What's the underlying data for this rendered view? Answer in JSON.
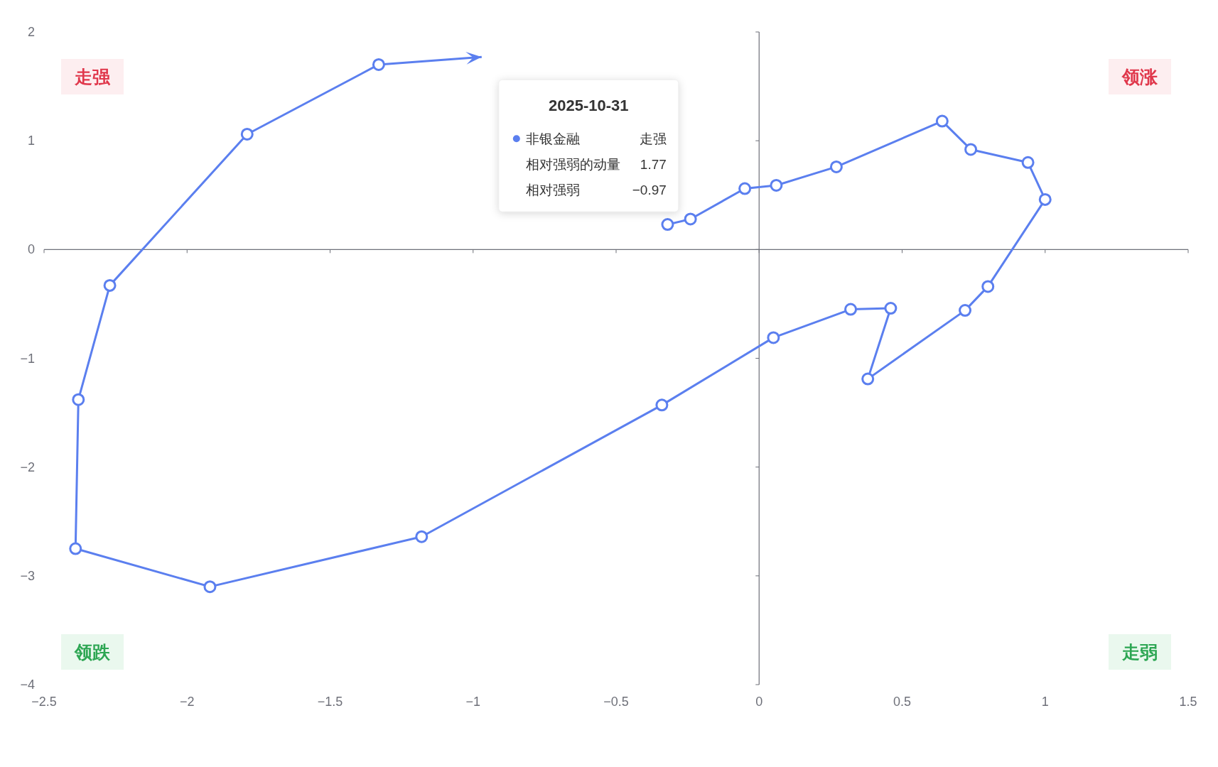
{
  "chart_data": {
    "type": "line",
    "marker": "circle",
    "xlim": [
      -2.5,
      1.5
    ],
    "ylim": [
      -4,
      2
    ],
    "xticks": [
      {
        "value": -2.5,
        "label": "−2.5"
      },
      {
        "value": -2,
        "label": "−2"
      },
      {
        "value": -1.5,
        "label": "−1.5"
      },
      {
        "value": -1,
        "label": "−1"
      },
      {
        "value": -0.5,
        "label": "−0.5"
      },
      0,
      0.5,
      1,
      1.5
    ],
    "yticks": [
      {
        "value": -4,
        "label": "−4"
      },
      {
        "value": -3,
        "label": "−3"
      },
      {
        "value": -2,
        "label": "−2"
      },
      {
        "value": -1,
        "label": "−1"
      },
      0,
      1,
      2
    ],
    "series": [
      {
        "name": "非银金融",
        "color": "#5b7fef",
        "x": [
          -0.32,
          -0.24,
          -0.05,
          0.06,
          0.27,
          0.64,
          0.74,
          0.94,
          1.0,
          0.8,
          0.72,
          0.38,
          0.46,
          0.32,
          0.05,
          -0.34,
          -1.18,
          -1.92,
          -2.39,
          -2.38,
          -2.27,
          -1.79,
          -1.33,
          -0.97
        ],
        "values": [
          0.23,
          0.28,
          0.56,
          0.59,
          0.76,
          1.18,
          0.92,
          0.8,
          0.46,
          -0.34,
          -0.56,
          -1.19,
          -0.54,
          -0.55,
          -0.81,
          -1.43,
          -2.64,
          -3.1,
          -2.75,
          -1.38,
          -0.33,
          1.06,
          1.7,
          1.77
        ]
      }
    ],
    "annotations": [
      "走强",
      "领涨",
      "领跌",
      "走弱",
      "2025-10-31",
      "走强",
      "相对强弱的动量",
      "1.77",
      "相对强弱",
      "−0.97"
    ]
  }
}
